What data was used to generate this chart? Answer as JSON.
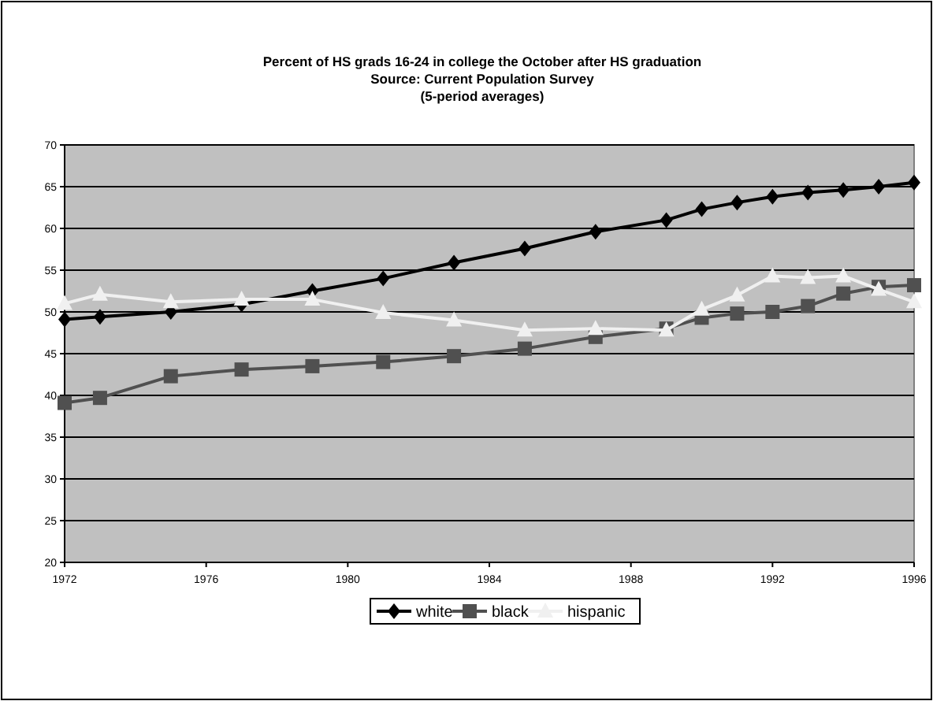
{
  "chart_data": {
    "type": "line",
    "title": "Percent of HS grads 16-24 in college the October after HS graduation",
    "subtitle": [
      "Source: Current Population Survey",
      "(5-period averages)"
    ],
    "x": [
      1972,
      1973,
      1975,
      1977,
      1979,
      1981,
      1983,
      1985,
      1987,
      1989,
      1990,
      1991,
      1992,
      1993,
      1994,
      1995,
      1996
    ],
    "series": [
      {
        "name": "white",
        "color": "#000000",
        "marker": "diamond",
        "values": [
          49.1,
          49.4,
          50.0,
          50.9,
          52.5,
          54.0,
          55.9,
          57.6,
          59.6,
          61.0,
          62.3,
          63.1,
          63.8,
          64.3,
          64.6,
          65.0,
          65.5
        ]
      },
      {
        "name": "black",
        "color": "#505050",
        "marker": "square",
        "values": [
          39.1,
          39.7,
          42.3,
          43.1,
          43.5,
          44.0,
          44.7,
          45.6,
          47.0,
          48.0,
          49.3,
          49.8,
          50.0,
          50.7,
          52.2,
          53.0,
          53.2
        ]
      },
      {
        "name": "hispanic",
        "color": "#f0f0f0",
        "marker": "triangle",
        "values": [
          51.0,
          52.1,
          51.2,
          51.5,
          51.5,
          49.9,
          49.0,
          47.8,
          48.0,
          47.8,
          50.3,
          52.0,
          54.3,
          54.1,
          54.3,
          52.7,
          51.2
        ]
      }
    ],
    "xlim": [
      1972,
      1996
    ],
    "xticks": [
      1972,
      1976,
      1980,
      1984,
      1988,
      1992,
      1996
    ],
    "ylim": [
      20,
      70
    ],
    "yticks": [
      20,
      25,
      30,
      35,
      40,
      45,
      50,
      55,
      60,
      65,
      70
    ],
    "grid": "y",
    "legend": "bottom"
  }
}
